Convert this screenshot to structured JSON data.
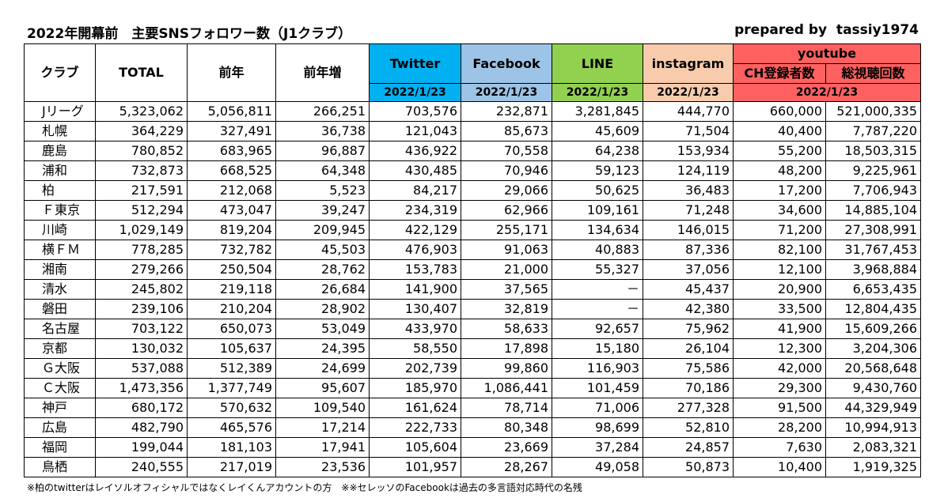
{
  "header": {
    "title": "2022年開幕前　主要SNSフォロワー数（J1クラブ）",
    "credit": "prepared by  tassiy1974"
  },
  "table": {
    "columns": [
      "クラブ",
      "TOTAL",
      "前年",
      "前年増",
      "Twitter",
      "Facebook",
      "LINE",
      "instagram"
    ],
    "youtube": "youtube",
    "youtube_columns": [
      "CH登録者数",
      "総視聴回数"
    ],
    "dates": [
      "2022/1/23",
      "2022/1/23",
      "2022/1/23",
      "2022/1/23",
      "2022/1/23"
    ],
    "rows": [
      [
        "Jリーグ",
        "5,323,062",
        "5,056,811",
        "266,251",
        "703,576",
        "232,871",
        "3,281,845",
        "444,770",
        "660,000",
        "521,000,335"
      ],
      [
        "札幌",
        "364,229",
        "327,491",
        "36,738",
        "121,043",
        "85,673",
        "45,609",
        "71,504",
        "40,400",
        "7,787,220"
      ],
      [
        "鹿島",
        "780,852",
        "683,965",
        "96,887",
        "436,922",
        "70,558",
        "64,238",
        "153,934",
        "55,200",
        "18,503,315"
      ],
      [
        "浦和",
        "732,873",
        "668,525",
        "64,348",
        "430,485",
        "70,946",
        "59,123",
        "124,119",
        "48,200",
        "9,225,961"
      ],
      [
        "柏",
        "217,591",
        "212,068",
        "5,523",
        "84,217",
        "29,066",
        "50,625",
        "36,483",
        "17,200",
        "7,706,943"
      ],
      [
        "Ｆ東京",
        "512,294",
        "473,047",
        "39,247",
        "234,319",
        "62,966",
        "109,161",
        "71,248",
        "34,600",
        "14,885,104"
      ],
      [
        "川崎",
        "1,029,149",
        "819,204",
        "209,945",
        "422,129",
        "255,171",
        "134,634",
        "146,015",
        "71,200",
        "27,308,991"
      ],
      [
        "横ＦＭ",
        "778,285",
        "732,782",
        "45,503",
        "476,903",
        "91,063",
        "40,883",
        "87,336",
        "82,100",
        "31,767,453"
      ],
      [
        "湘南",
        "279,266",
        "250,504",
        "28,762",
        "153,783",
        "21,000",
        "55,327",
        "37,056",
        "12,100",
        "3,968,884"
      ],
      [
        "清水",
        "245,802",
        "219,118",
        "26,684",
        "141,900",
        "37,565",
        "－",
        "45,437",
        "20,900",
        "6,653,435"
      ],
      [
        "磐田",
        "239,106",
        "210,204",
        "28,902",
        "130,407",
        "32,819",
        "－",
        "42,380",
        "33,500",
        "12,804,435"
      ],
      [
        "名古屋",
        "703,122",
        "650,073",
        "53,049",
        "433,970",
        "58,633",
        "92,657",
        "75,962",
        "41,900",
        "15,609,266"
      ],
      [
        "京都",
        "130,032",
        "105,637",
        "24,395",
        "58,550",
        "17,898",
        "15,180",
        "26,104",
        "12,300",
        "3,204,306"
      ],
      [
        "Ｇ大阪",
        "537,088",
        "512,389",
        "24,699",
        "202,739",
        "99,860",
        "116,903",
        "75,586",
        "42,000",
        "20,568,648"
      ],
      [
        "Ｃ大阪",
        "1,473,356",
        "1,377,749",
        "95,607",
        "185,970",
        "1,086,441",
        "101,459",
        "70,186",
        "29,300",
        "9,430,760"
      ],
      [
        "神戸",
        "680,172",
        "570,632",
        "109,540",
        "161,624",
        "78,714",
        "71,006",
        "277,328",
        "91,500",
        "44,329,949"
      ],
      [
        "広島",
        "482,790",
        "465,576",
        "17,214",
        "222,733",
        "80,348",
        "98,699",
        "52,810",
        "28,200",
        "10,994,913"
      ],
      [
        "福岡",
        "199,044",
        "181,103",
        "17,941",
        "105,604",
        "23,669",
        "37,284",
        "24,857",
        "7,630",
        "2,083,321"
      ],
      [
        "鳥栖",
        "240,555",
        "217,019",
        "23,536",
        "101,957",
        "28,267",
        "49,058",
        "50,873",
        "10,400",
        "1,919,325"
      ]
    ]
  },
  "footnote": "※柏のtwitterはレイソルオフィシャルではなくレイくんアカウントの方　※※セレッソのFacebookは過去の多言語対応時代の名残"
}
